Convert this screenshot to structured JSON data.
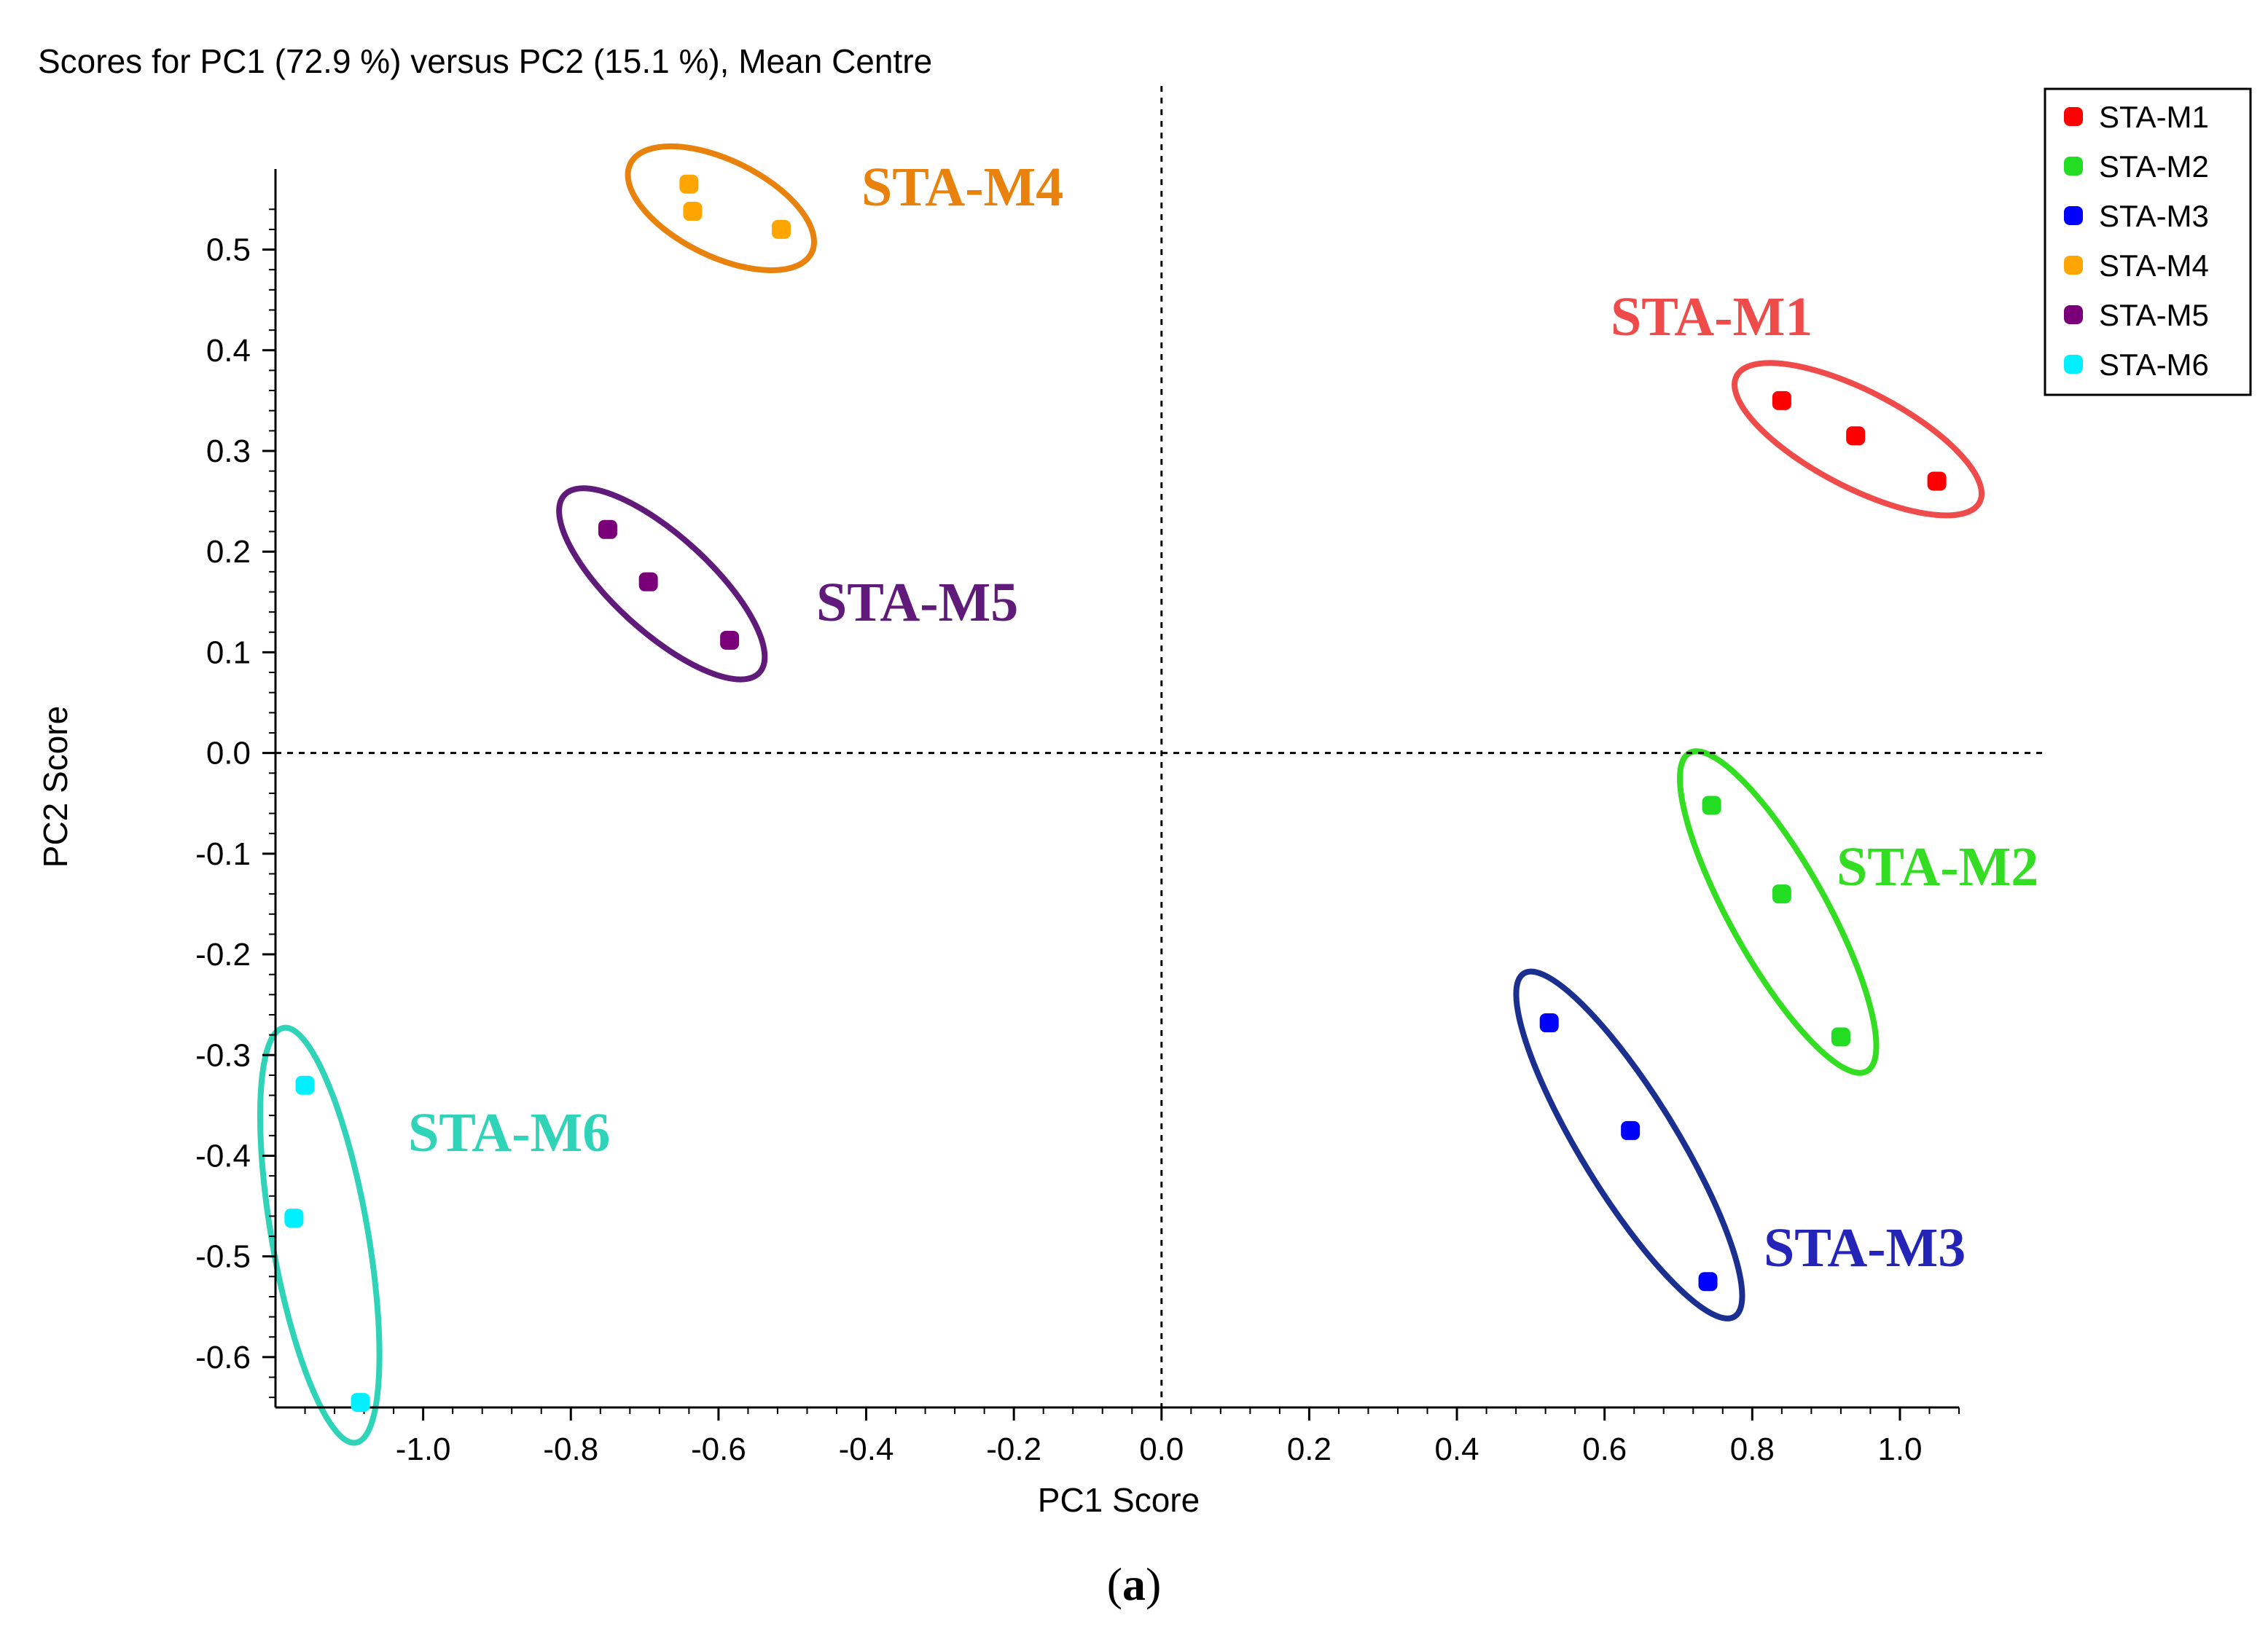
{
  "chart_data": {
    "type": "scatter",
    "title": "Scores for PC1 (72.9 %) versus PC2 (15.1 %), Mean Centre",
    "xlabel": "PC1 Score",
    "ylabel": "PC2 Score",
    "xlim": [
      -1.2,
      1.08
    ],
    "ylim": [
      -0.65,
      0.58
    ],
    "x_ticks": [
      -1.0,
      -0.8,
      -0.6,
      -0.4,
      -0.2,
      0.0,
      0.2,
      0.4,
      0.6,
      0.8,
      1.0
    ],
    "x_tick_labels": [
      "-1.0",
      "-0.8",
      "-0.6",
      "-0.4",
      "-0.2",
      "0.0",
      "0.2",
      "0.4",
      "0.6",
      "0.8",
      "1.0"
    ],
    "y_ticks": [
      0.5,
      0.4,
      0.3,
      0.2,
      0.1,
      0.0,
      -0.1,
      -0.2,
      -0.3,
      -0.4,
      -0.5,
      -0.6
    ],
    "y_tick_labels": [
      "0.5",
      "0.4",
      "0.3",
      "0.2",
      "0.1",
      "0.0",
      "-0.1",
      "-0.2",
      "-0.3",
      "-0.4",
      "-0.5",
      "-0.6"
    ],
    "legend_position": "top-right",
    "reference_lines": [
      "x = 0 (dashed)",
      "y = 0 (dashed)"
    ],
    "series": [
      {
        "name": "STA-M1",
        "color": "#ff0000",
        "ellipse_color": "#ef4b4b",
        "label_color": "#ef4b4b",
        "points": [
          [
            0.84,
            0.35
          ],
          [
            0.94,
            0.315
          ],
          [
            1.05,
            0.27
          ]
        ]
      },
      {
        "name": "STA-M2",
        "color": "#22dd22",
        "ellipse_color": "#33dd22",
        "label_color": "#33dd22",
        "points": [
          [
            0.745,
            -0.052
          ],
          [
            0.84,
            -0.14
          ],
          [
            0.92,
            -0.282
          ]
        ]
      },
      {
        "name": "STA-M3",
        "color": "#0000ff",
        "ellipse_color": "#1a2f8f",
        "label_color": "#2424b8",
        "points": [
          [
            0.525,
            -0.268
          ],
          [
            0.635,
            -0.375
          ],
          [
            0.74,
            -0.525
          ]
        ]
      },
      {
        "name": "STA-M4",
        "color": "#ffa500",
        "ellipse_color": "#e8820c",
        "label_color": "#e8820c",
        "points": [
          [
            -0.64,
            0.565
          ],
          [
            -0.635,
            0.538
          ],
          [
            -0.515,
            0.52
          ]
        ]
      },
      {
        "name": "STA-M5",
        "color": "#7a007a",
        "ellipse_color": "#5f1a7a",
        "label_color": "#5f1a7a",
        "points": [
          [
            -0.75,
            0.222
          ],
          [
            -0.695,
            0.17
          ],
          [
            -0.585,
            0.112
          ]
        ]
      },
      {
        "name": "STA-M6",
        "color": "#00f0ff",
        "ellipse_color": "#2fd3b8",
        "label_color": "#2fd3b8",
        "points": [
          [
            -1.16,
            -0.33
          ],
          [
            -1.175,
            -0.462
          ],
          [
            -1.085,
            -0.645
          ]
        ]
      }
    ]
  },
  "caption": {
    "open": "(",
    "letter": "a",
    "close": ")"
  }
}
